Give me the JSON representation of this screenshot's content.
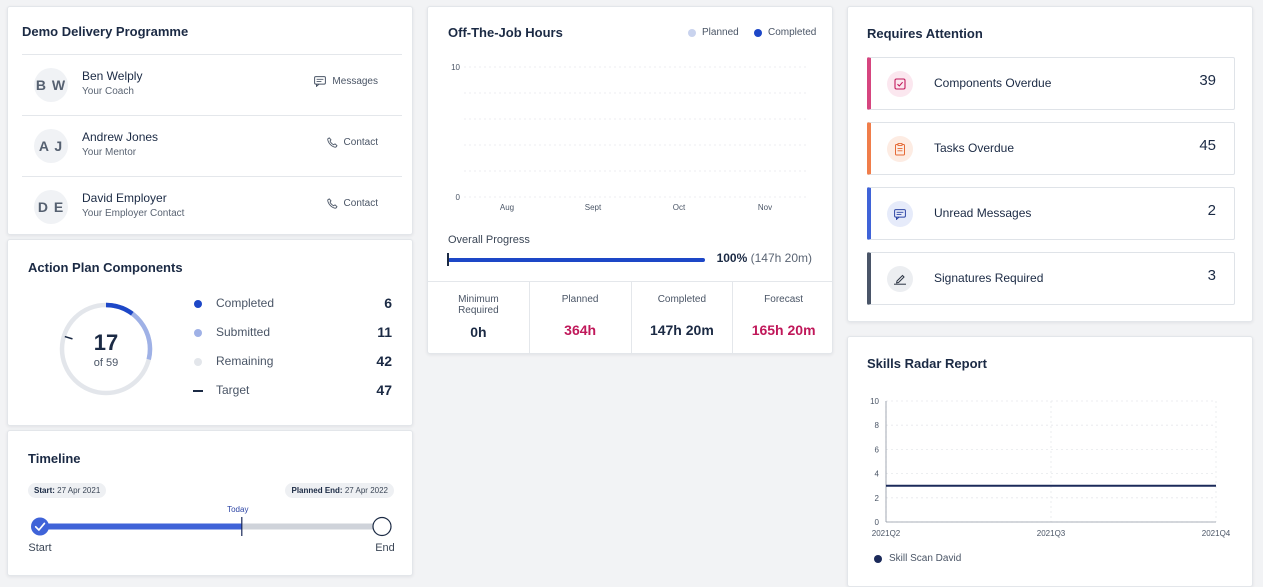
{
  "programme": {
    "title": "Demo Delivery Programme",
    "contacts": [
      {
        "initials": "B W",
        "name": "Ben Welply",
        "role": "Your Coach",
        "action": "Messages",
        "action_icon": "message-icon"
      },
      {
        "initials": "A J",
        "name": "Andrew Jones",
        "role": "Your Mentor",
        "action": "Contact",
        "action_icon": "phone-icon"
      },
      {
        "initials": "D E",
        "name": "David Employer",
        "role": "Your Employer Contact",
        "action": "Contact",
        "action_icon": "phone-icon"
      }
    ]
  },
  "action_plan": {
    "title": "Action Plan Components",
    "center_value": "17",
    "center_sub": "of 59",
    "total": 59,
    "completed_value": 6,
    "submitted_value": 11,
    "target_value": 47,
    "legend": [
      {
        "label": "Completed",
        "value": "6",
        "color": "#1d47c7",
        "marker": "dot"
      },
      {
        "label": "Submitted",
        "value": "11",
        "color": "#9fb1e6",
        "marker": "dot"
      },
      {
        "label": "Remaining",
        "value": "42",
        "color": "#e3e6eb",
        "marker": "dot"
      },
      {
        "label": "Target",
        "value": "47",
        "color": "#1b2a44",
        "marker": "dash"
      }
    ]
  },
  "timeline": {
    "title": "Timeline",
    "start_prefix": "Start:",
    "start_date": "27 Apr 2021",
    "end_prefix": "Planned End:",
    "end_date": "27 Apr 2022",
    "today_label": "Today",
    "start_label": "Start",
    "end_label": "End",
    "progress_fraction": 0.59
  },
  "otj": {
    "title": "Off-The-Job Hours",
    "legend_planned": "Planned",
    "legend_completed": "Completed",
    "planned_color": "#c9d3ee",
    "completed_color": "#1d47c7",
    "overall_label": "Overall Progress",
    "overall_percent": "100%",
    "overall_detail": "(147h 20m)",
    "overall_fraction": 1.0,
    "stats": [
      {
        "label": "Minimum\nRequired",
        "value": "0h",
        "color": "#1b2a44"
      },
      {
        "label": "Planned",
        "value": "364h",
        "color": "#c0185a"
      },
      {
        "label": "Completed",
        "value": "147h 20m",
        "color": "#1b2a44"
      },
      {
        "label": "Forecast",
        "value": "165h 20m",
        "color": "#c0185a"
      }
    ]
  },
  "chart_data": [
    {
      "type": "bar",
      "title": "Off-The-Job Hours",
      "categories": [
        "Aug",
        "Sept",
        "Oct",
        "Nov"
      ],
      "series": [
        {
          "name": "Planned",
          "values": [
            0,
            0,
            0,
            0
          ]
        },
        {
          "name": "Completed",
          "values": [
            0,
            0,
            0,
            0
          ]
        }
      ],
      "yticks": [
        "0",
        "10"
      ],
      "ylim": [
        0,
        10
      ],
      "grid": true,
      "legend": "top-right"
    },
    {
      "type": "line",
      "title": "Skills Radar Report",
      "x": [
        "2021Q2",
        "2021Q3",
        "2021Q4"
      ],
      "series": [
        {
          "name": "Skill Scan David",
          "values": [
            3,
            3,
            3
          ],
          "color": "#1b2a5a"
        }
      ],
      "yticks": [
        "0",
        "2",
        "4",
        "6",
        "8",
        "10"
      ],
      "ylim": [
        0,
        10
      ],
      "grid": true,
      "legend": "bottom-left"
    }
  ],
  "attention": {
    "title": "Requires Attention",
    "items": [
      {
        "label": "Components Overdue",
        "value": "39",
        "color": "#d6457f",
        "icon": "checkbox-icon"
      },
      {
        "label": "Tasks Overdue",
        "value": "45",
        "color": "#f07d4a",
        "icon": "clipboard-icon"
      },
      {
        "label": "Unread Messages",
        "value": "2",
        "color": "#3f63d8",
        "icon": "message-icon"
      },
      {
        "label": "Signatures Required",
        "value": "3",
        "color": "#4a5568",
        "icon": "signature-icon"
      }
    ]
  },
  "skills": {
    "title": "Skills Radar Report",
    "legend_label": "Skill Scan David",
    "legend_color": "#1b2a5a"
  }
}
